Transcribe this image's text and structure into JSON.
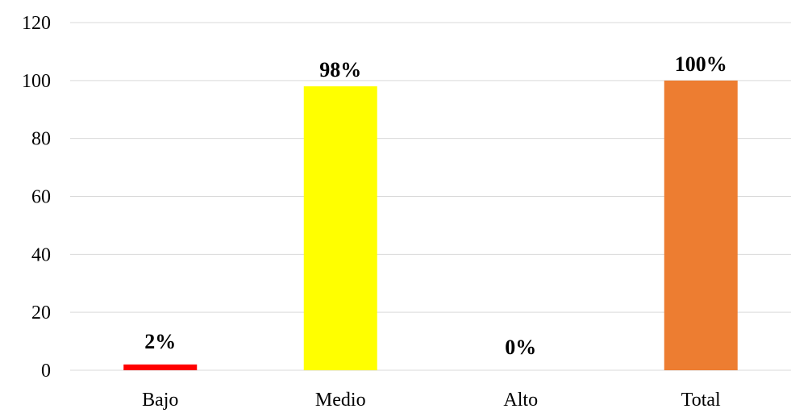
{
  "chart_data": {
    "type": "bar",
    "title": "",
    "xlabel": "",
    "ylabel": "",
    "categories": [
      "Bajo",
      "Medio",
      "Alto",
      "Total"
    ],
    "values": [
      2,
      98,
      0,
      100
    ],
    "data_labels": [
      "2%",
      "98%",
      "0%",
      "100%"
    ],
    "bar_colors": [
      "#ff0000",
      "#ffff00",
      "#4472c4",
      "#ed7d31"
    ],
    "ylim": [
      0,
      120
    ],
    "yticks": [
      0,
      20,
      40,
      60,
      80,
      100,
      120
    ],
    "ytick_labels": [
      "0",
      "20",
      "40",
      "60",
      "80",
      "100",
      "120"
    ],
    "grid": true,
    "legend": "none"
  }
}
